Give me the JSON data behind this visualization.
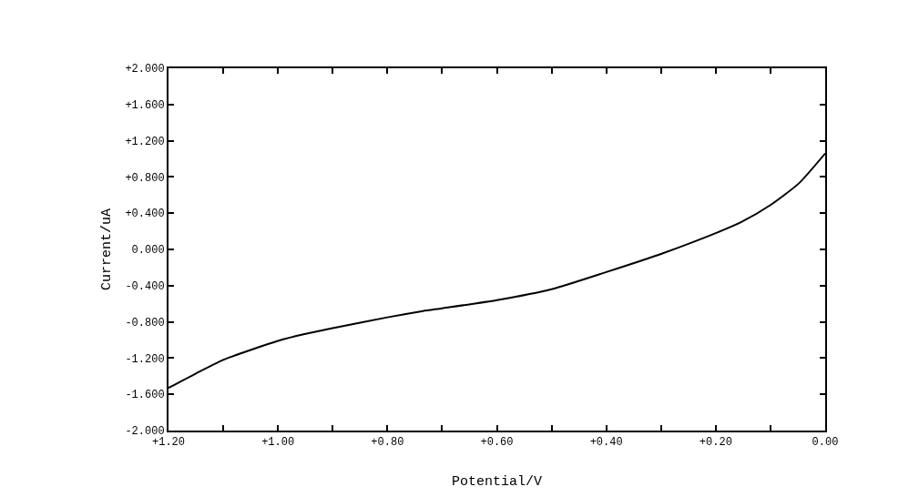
{
  "chart_data": {
    "type": "line",
    "xlabel": "Potential/V",
    "ylabel": "Current/uA",
    "x": [
      1.2,
      1.15,
      1.1,
      1.05,
      1.0,
      0.955,
      0.9,
      0.8,
      0.735,
      0.7,
      0.6,
      0.5,
      0.4,
      0.3,
      0.2,
      0.154,
      0.1,
      0.048,
      0.0
    ],
    "series": [
      {
        "color": "#000000",
        "values": [
          -1.53,
          -1.37,
          -1.22,
          -1.11,
          -1.01,
          -0.94,
          -0.87,
          -0.75,
          -0.68,
          -0.65,
          -0.56,
          -0.44,
          -0.25,
          -0.05,
          0.18,
          0.3,
          0.49,
          0.73,
          1.06
        ]
      }
    ],
    "xlim": [
      1.2,
      0.0
    ],
    "xticks": [
      {
        "value": 1.2,
        "label": "+1.20"
      },
      {
        "value": 1.1,
        "label": null
      },
      {
        "value": 1.0,
        "label": "+1.00"
      },
      {
        "value": 0.9,
        "label": null
      },
      {
        "value": 0.8,
        "label": "+0.80"
      },
      {
        "value": 0.7,
        "label": null
      },
      {
        "value": 0.6,
        "label": "+0.60"
      },
      {
        "value": 0.5,
        "label": null
      },
      {
        "value": 0.4,
        "label": "+0.40"
      },
      {
        "value": 0.3,
        "label": null
      },
      {
        "value": 0.2,
        "label": "+0.20"
      },
      {
        "value": 0.1,
        "label": null
      },
      {
        "value": 0.0,
        "label": "0.00"
      }
    ],
    "ylim": [
      -2.0,
      2.0
    ],
    "yticks": [
      {
        "value": 2.0,
        "label": "+2.000"
      },
      {
        "value": 1.6,
        "label": "+1.600"
      },
      {
        "value": 1.2,
        "label": "+1.200"
      },
      {
        "value": 0.8,
        "label": "+0.800"
      },
      {
        "value": 0.4,
        "label": "+0.400"
      },
      {
        "value": 0.0,
        "label": "0.000"
      },
      {
        "value": -0.4,
        "label": "-0.400"
      },
      {
        "value": -0.8,
        "label": "-0.800"
      },
      {
        "value": -1.2,
        "label": "-1.200"
      },
      {
        "value": -1.6,
        "label": "-1.600"
      },
      {
        "value": -2.0,
        "label": "-2.000"
      }
    ],
    "marker": "none",
    "line_style": "solid"
  }
}
